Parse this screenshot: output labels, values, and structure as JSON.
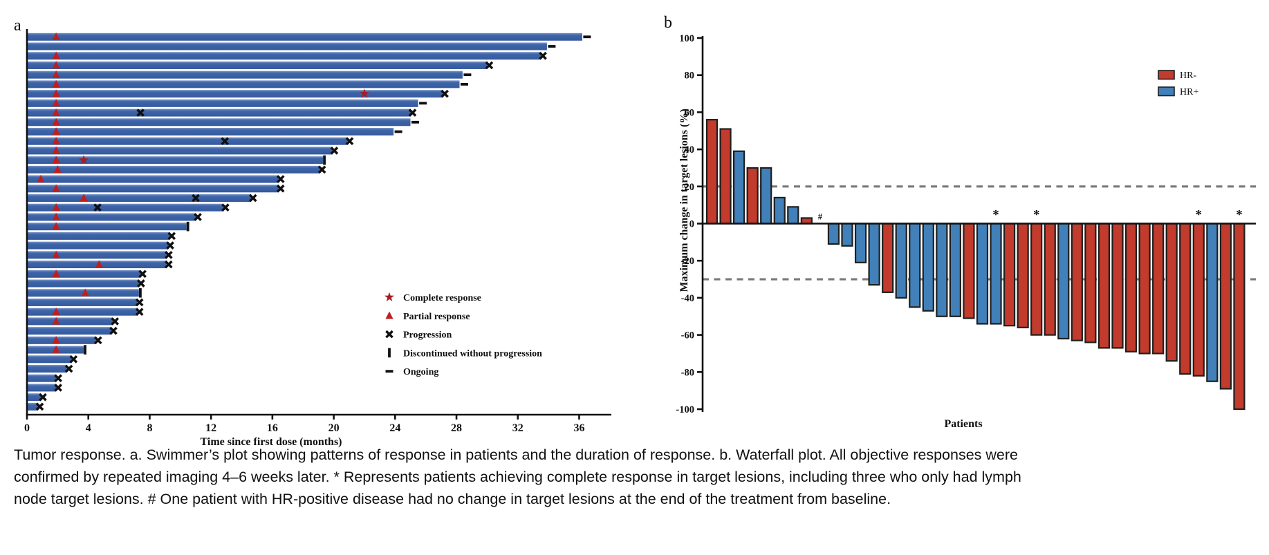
{
  "figure": {
    "panel_a_label": "a",
    "panel_b_label": "b"
  },
  "caption": {
    "lines": [
      "Tumor response. a. Swimmer’s plot showing patterns of response in patients and the duration of response. b. Waterfall plot. All objective responses were",
      "confirmed by repeated imaging 4–6 weeks later. * Represents patients achieving complete response in target lesions, including three who only had lymph",
      "node target lesions. # One patient with HR-positive disease had no change in target lesions at the end of the treatment from baseline."
    ]
  },
  "chart_data": [
    {
      "id": "swimmer",
      "type": "bar",
      "orientation": "horizontal",
      "xlabel": "Time since first dose (months)",
      "xlim": [
        0,
        38
      ],
      "xticks": [
        0,
        4,
        8,
        12,
        16,
        20,
        24,
        28,
        32,
        36
      ],
      "bar_color": "#3a62a6",
      "marker_colors": {
        "complete_response": "#ab1a20",
        "partial_response": "#c01e1e",
        "progression": "#101010",
        "discontinued": "#101010",
        "ongoing": "#101010"
      },
      "legend_position": "inside-right",
      "legend": [
        {
          "marker": "star",
          "label": "Complete response"
        },
        {
          "marker": "triangle",
          "label": "Partial response"
        },
        {
          "marker": "x",
          "label": "Progression"
        },
        {
          "marker": "bar",
          "label": "Discontinued without progression"
        },
        {
          "marker": "dash",
          "label": "Ongoing"
        }
      ],
      "patients": [
        {
          "duration": 36.2,
          "end": "ongoing",
          "events": [
            {
              "type": "pr",
              "t": 1.9
            }
          ]
        },
        {
          "duration": 33.9,
          "end": "ongoing",
          "events": []
        },
        {
          "duration": 33.5,
          "end": "progression",
          "events": [
            {
              "type": "pr",
              "t": 1.9
            }
          ]
        },
        {
          "duration": 30.0,
          "end": "progression",
          "events": [
            {
              "type": "pr",
              "t": 1.9
            }
          ]
        },
        {
          "duration": 28.4,
          "end": "ongoing",
          "events": [
            {
              "type": "pr",
              "t": 1.9
            }
          ]
        },
        {
          "duration": 28.2,
          "end": "ongoing",
          "events": [
            {
              "type": "pr",
              "t": 1.9
            }
          ]
        },
        {
          "duration": 27.1,
          "end": "progression",
          "events": [
            {
              "type": "pr",
              "t": 1.9
            },
            {
              "type": "cr",
              "t": 22.0
            }
          ]
        },
        {
          "duration": 25.5,
          "end": "ongoing",
          "events": [
            {
              "type": "pr",
              "t": 1.9
            }
          ]
        },
        {
          "duration": 25.0,
          "end": "progression",
          "events": [
            {
              "type": "pr",
              "t": 1.9
            },
            {
              "type": "px",
              "t": 7.4
            }
          ]
        },
        {
          "duration": 25.0,
          "end": "ongoing",
          "events": [
            {
              "type": "pr",
              "t": 1.9
            }
          ]
        },
        {
          "duration": 23.9,
          "end": "ongoing",
          "events": [
            {
              "type": "pr",
              "t": 1.9
            }
          ]
        },
        {
          "duration": 20.9,
          "end": "progression",
          "events": [
            {
              "type": "pr",
              "t": 1.9
            },
            {
              "type": "px",
              "t": 12.9
            }
          ]
        },
        {
          "duration": 19.9,
          "end": "progression",
          "events": [
            {
              "type": "pr",
              "t": 1.9
            }
          ]
        },
        {
          "duration": 19.3,
          "end": "discontinued",
          "events": [
            {
              "type": "pr",
              "t": 1.9
            },
            {
              "type": "cr",
              "t": 3.7
            }
          ]
        },
        {
          "duration": 19.1,
          "end": "progression",
          "events": [
            {
              "type": "pr",
              "t": 2.0
            }
          ]
        },
        {
          "duration": 16.4,
          "end": "progression",
          "events": [
            {
              "type": "pr",
              "t": 0.9
            }
          ]
        },
        {
          "duration": 16.4,
          "end": "progression",
          "events": [
            {
              "type": "pr",
              "t": 1.9
            }
          ]
        },
        {
          "duration": 14.6,
          "end": "progression",
          "events": [
            {
              "type": "pr",
              "t": 3.7
            },
            {
              "type": "px",
              "t": 11.0
            }
          ]
        },
        {
          "duration": 12.8,
          "end": "progression",
          "events": [
            {
              "type": "pr",
              "t": 1.9
            },
            {
              "type": "px",
              "t": 4.6
            }
          ]
        },
        {
          "duration": 11.0,
          "end": "progression",
          "events": [
            {
              "type": "pr",
              "t": 1.9
            }
          ]
        },
        {
          "duration": 10.4,
          "end": "discontinued",
          "events": [
            {
              "type": "pr",
              "t": 1.9
            }
          ]
        },
        {
          "duration": 9.3,
          "end": "progression",
          "events": []
        },
        {
          "duration": 9.2,
          "end": "progression",
          "events": []
        },
        {
          "duration": 9.1,
          "end": "progression",
          "events": [
            {
              "type": "pr",
              "t": 1.9
            }
          ]
        },
        {
          "duration": 9.1,
          "end": "progression",
          "events": [
            {
              "type": "pr",
              "t": 4.7
            }
          ]
        },
        {
          "duration": 7.4,
          "end": "progression",
          "events": [
            {
              "type": "pr",
              "t": 1.9
            }
          ]
        },
        {
          "duration": 7.3,
          "end": "progression",
          "events": []
        },
        {
          "duration": 7.3,
          "end": "discontinued",
          "events": [
            {
              "type": "pr",
              "t": 3.8
            }
          ]
        },
        {
          "duration": 7.2,
          "end": "progression",
          "events": []
        },
        {
          "duration": 7.2,
          "end": "progression",
          "events": [
            {
              "type": "pr",
              "t": 1.9
            }
          ]
        },
        {
          "duration": 5.6,
          "end": "progression",
          "events": [
            {
              "type": "pr",
              "t": 1.9
            }
          ]
        },
        {
          "duration": 5.5,
          "end": "progression",
          "events": []
        },
        {
          "duration": 4.5,
          "end": "progression",
          "events": [
            {
              "type": "pr",
              "t": 1.9
            }
          ]
        },
        {
          "duration": 3.7,
          "end": "discontinued",
          "events": [
            {
              "type": "pr",
              "t": 1.9
            }
          ]
        },
        {
          "duration": 2.9,
          "end": "progression",
          "events": []
        },
        {
          "duration": 2.6,
          "end": "progression",
          "events": []
        },
        {
          "duration": 1.9,
          "end": "progression",
          "events": []
        },
        {
          "duration": 1.9,
          "end": "progression",
          "events": []
        },
        {
          "duration": 0.9,
          "end": "progression",
          "events": []
        },
        {
          "duration": 0.7,
          "end": "progression",
          "events": []
        }
      ]
    },
    {
      "id": "waterfall",
      "type": "bar",
      "ylabel": "Maximum change in target lesions (%)",
      "xlabel": "Patients",
      "ylim": [
        -100,
        100
      ],
      "yticks": [
        100,
        80,
        60,
        40,
        20,
        0,
        -20,
        -40,
        -60,
        -80,
        -100
      ],
      "reference_lines": [
        20,
        -30
      ],
      "grid": false,
      "legend_position": "top-right",
      "legend": [
        {
          "label": "HR-",
          "color": "#c23b2c"
        },
        {
          "label": "HR+",
          "color": "#4180b8"
        }
      ],
      "bars": [
        {
          "v": 56,
          "g": "HR-"
        },
        {
          "v": 51,
          "g": "HR-"
        },
        {
          "v": 39,
          "g": "HR+"
        },
        {
          "v": 30,
          "g": "HR-"
        },
        {
          "v": 30,
          "g": "HR+"
        },
        {
          "v": 14,
          "g": "HR+"
        },
        {
          "v": 9,
          "g": "HR+"
        },
        {
          "v": 3,
          "g": "HR-"
        },
        {
          "v": 0,
          "g": "HR+",
          "n": "#"
        },
        {
          "v": -11,
          "g": "HR+"
        },
        {
          "v": -12,
          "g": "HR+"
        },
        {
          "v": -21,
          "g": "HR+"
        },
        {
          "v": -33,
          "g": "HR+"
        },
        {
          "v": -37,
          "g": "HR-"
        },
        {
          "v": -40,
          "g": "HR+"
        },
        {
          "v": -45,
          "g": "HR+"
        },
        {
          "v": -47,
          "g": "HR+"
        },
        {
          "v": -50,
          "g": "HR+"
        },
        {
          "v": -50,
          "g": "HR+"
        },
        {
          "v": -51,
          "g": "HR-"
        },
        {
          "v": -54,
          "g": "HR+"
        },
        {
          "v": -54,
          "g": "HR+",
          "n": "*"
        },
        {
          "v": -55,
          "g": "HR-"
        },
        {
          "v": -56,
          "g": "HR-"
        },
        {
          "v": -60,
          "g": "HR-",
          "n": "*"
        },
        {
          "v": -60,
          "g": "HR-"
        },
        {
          "v": -62,
          "g": "HR+"
        },
        {
          "v": -63,
          "g": "HR-"
        },
        {
          "v": -64,
          "g": "HR-"
        },
        {
          "v": -67,
          "g": "HR-"
        },
        {
          "v": -67,
          "g": "HR-"
        },
        {
          "v": -69,
          "g": "HR-"
        },
        {
          "v": -70,
          "g": "HR-"
        },
        {
          "v": -70,
          "g": "HR-"
        },
        {
          "v": -74,
          "g": "HR-"
        },
        {
          "v": -81,
          "g": "HR-"
        },
        {
          "v": -82,
          "g": "HR-",
          "n": "*"
        },
        {
          "v": -85,
          "g": "HR+"
        },
        {
          "v": -89,
          "g": "HR-"
        },
        {
          "v": -100,
          "g": "HR-",
          "n": "*"
        }
      ]
    }
  ]
}
